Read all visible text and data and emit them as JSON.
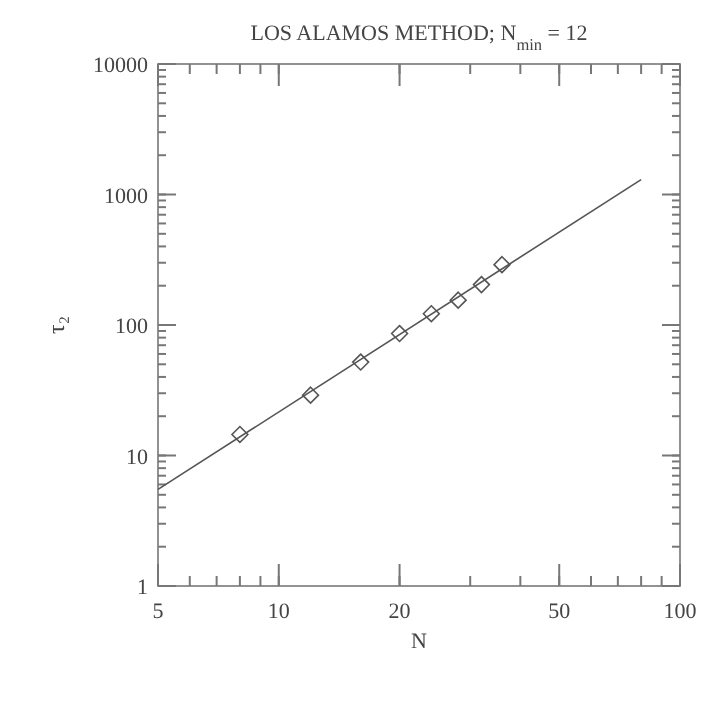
{
  "chart_data": {
    "type": "scatter",
    "title": "LOS ALAMOS METHOD; N$_{min}$ = 12",
    "xlabel": "N",
    "ylabel": "τ₂",
    "log": "xy",
    "grid": false,
    "x": [
      8,
      12,
      16,
      20,
      24,
      28,
      32,
      36
    ],
    "series": [
      {
        "color": "#555555",
        "marker": "diamond",
        "values": [
          14.5,
          29,
          52,
          86,
          122,
          155,
          204,
          290
        ]
      },
      {
        "type": "line",
        "color": "#555555",
        "marker": "none",
        "line_style": "solid",
        "x": [
          5,
          80
        ],
        "values": [
          5.5,
          1300
        ]
      }
    ],
    "xlim": [
      5,
      100
    ],
    "ylim": [
      1,
      10000
    ],
    "xticks": [
      5,
      10,
      20,
      50,
      100
    ],
    "yticks": [
      1,
      10,
      100,
      1000,
      10000
    ]
  }
}
